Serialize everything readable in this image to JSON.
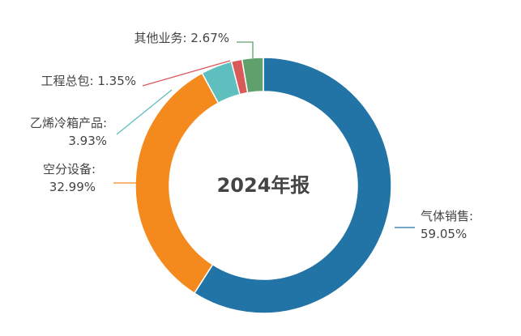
{
  "chart_data": {
    "type": "pie",
    "donut": true,
    "center_label": "2024年报",
    "slices": [
      {
        "name": "气体销售",
        "value": 59.05,
        "pct_label": "59.05%",
        "color": "#2174a5"
      },
      {
        "name": "空分设备",
        "value": 32.99,
        "pct_label": "32.99%",
        "color": "#f48a1e"
      },
      {
        "name": "乙烯冷箱产品",
        "value": 3.93,
        "pct_label": "3.93%",
        "color": "#5fbfbf"
      },
      {
        "name": "工程总包",
        "value": 1.35,
        "pct_label": "1.35%",
        "color": "#da5a5a"
      },
      {
        "name": "其他业务",
        "value": 2.67,
        "pct_label": "2.67%",
        "color": "#5fa06d"
      }
    ]
  }
}
